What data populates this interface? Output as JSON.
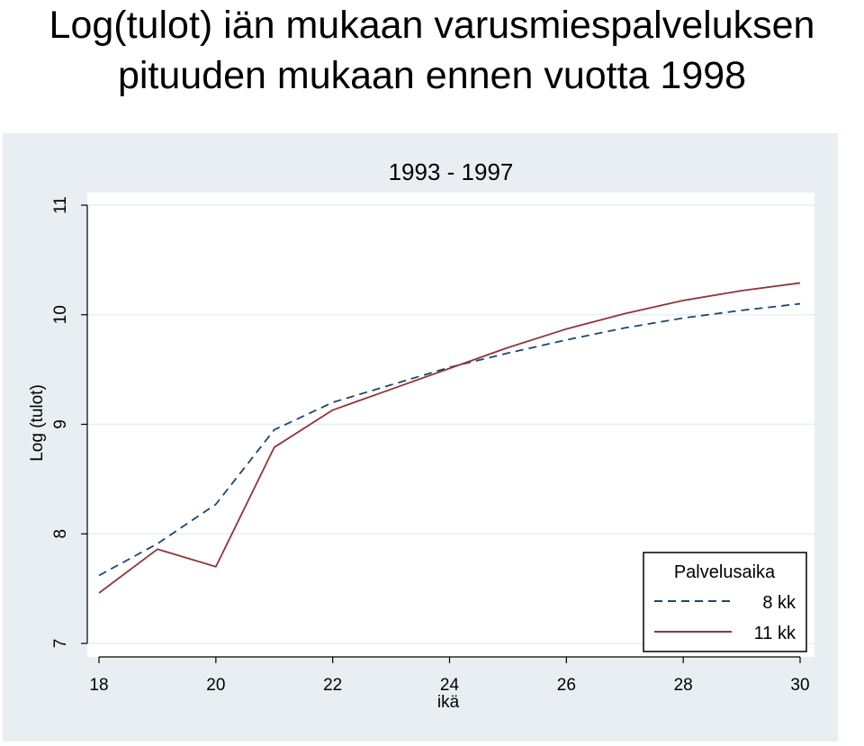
{
  "slide": {
    "title_line1": "Log(tulot) iän mukaan varusmiespalveluksen",
    "title_line2": "pituuden mukaan ennen vuotta 1998"
  },
  "colors": {
    "outer_background": "#e8eef1",
    "plot_background": "#ffffff",
    "gridline": "#e8eef1",
    "axis": "#000000",
    "series_8kk": "#1a476f",
    "series_11kk": "#90353b"
  },
  "chart_data": {
    "type": "line",
    "title": "1993 - 1997",
    "xlabel": "ikä",
    "ylabel": "Log (tulot)",
    "xlim": [
      18,
      30
    ],
    "ylim": [
      7,
      11
    ],
    "xticks": [
      18,
      20,
      22,
      24,
      26,
      28,
      30
    ],
    "yticks": [
      7,
      8,
      9,
      10,
      11
    ],
    "grid": true,
    "legend": {
      "title": "Palvelusaika",
      "position": "bottom-right"
    },
    "x": [
      18,
      19,
      20,
      21,
      22,
      23,
      24,
      25,
      26,
      27,
      28,
      29,
      30
    ],
    "series": [
      {
        "name": "8 kk",
        "style": "dashed",
        "color": "#1a476f",
        "values": [
          7.62,
          7.91,
          8.27,
          8.95,
          9.2,
          9.36,
          9.52,
          9.65,
          9.77,
          9.88,
          9.97,
          10.04,
          10.1
        ]
      },
      {
        "name": "11 kk",
        "style": "solid",
        "color": "#90353b",
        "values": [
          7.46,
          7.86,
          7.7,
          8.79,
          9.13,
          9.32,
          9.51,
          9.7,
          9.87,
          10.01,
          10.13,
          10.22,
          10.29
        ]
      }
    ]
  }
}
